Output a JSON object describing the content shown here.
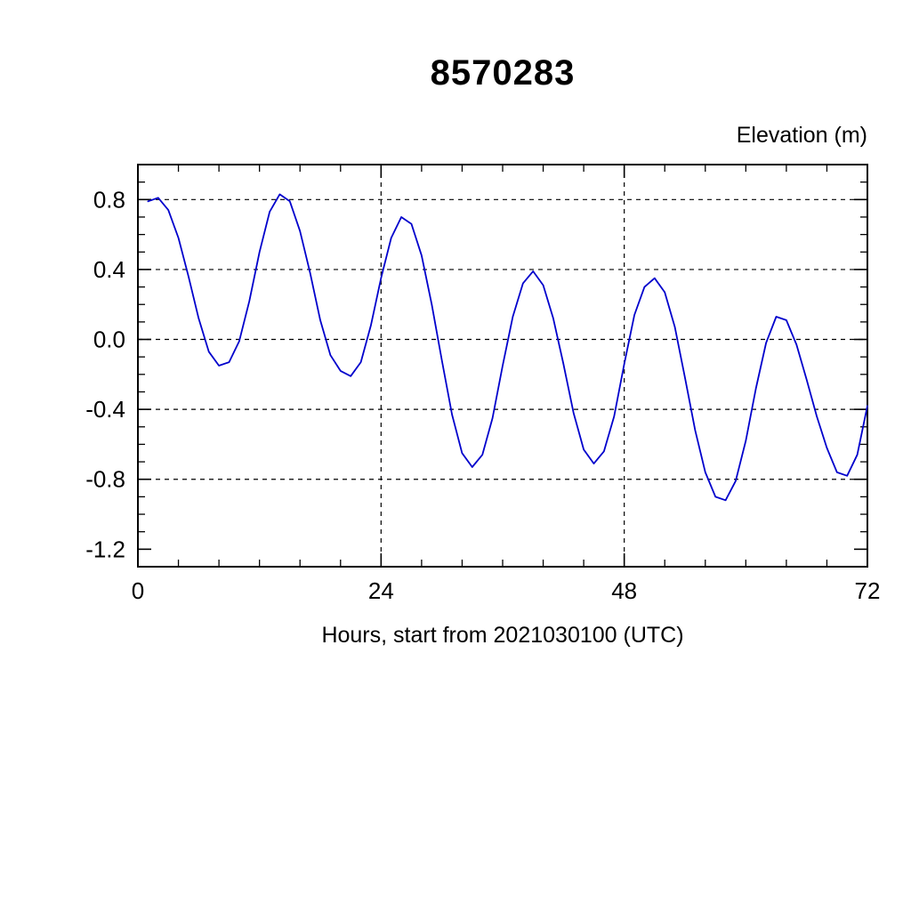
{
  "title": "8570283",
  "ylabel_right": "Elevation (m)",
  "xlabel": "Hours, start from 2021030100 (UTC)",
  "colors": {
    "line": "#0000cc",
    "axis": "#000000",
    "grid": "#000000"
  },
  "chart_data": {
    "type": "line",
    "title": "8570283",
    "xlabel": "Hours, start from 2021030100 (UTC)",
    "ylabel": "Elevation (m)",
    "xlim": [
      0,
      72
    ],
    "ylim": [
      -1.3,
      1.0
    ],
    "xticks": [
      0,
      24,
      48,
      72
    ],
    "yticks": [
      0.8,
      0.4,
      0.0,
      -0.4,
      -0.8,
      -1.2
    ],
    "xgrid": [
      24,
      48
    ],
    "ygrid": [
      0.8,
      0.4,
      0.0,
      -0.4,
      -0.8
    ],
    "x_minor_step": 4,
    "y_minor_step": 0.1,
    "grid_style": "dashed",
    "legend": "none",
    "series": [
      {
        "name": "elevation",
        "color": "#0000cc",
        "x": [
          1,
          2,
          3,
          4,
          5,
          6,
          7,
          8,
          9,
          10,
          11,
          12,
          13,
          14,
          15,
          16,
          17,
          18,
          19,
          20,
          21,
          22,
          23,
          24,
          25,
          26,
          27,
          28,
          29,
          30,
          31,
          32,
          33,
          34,
          35,
          36,
          37,
          38,
          39,
          40,
          41,
          42,
          43,
          44,
          45,
          46,
          47,
          48,
          49,
          50,
          51,
          52,
          53,
          54,
          55,
          56,
          57,
          58,
          59,
          60,
          61,
          62,
          63,
          64,
          65,
          66,
          67,
          68,
          69,
          70,
          71,
          72
        ],
        "y": [
          0.79,
          0.81,
          0.74,
          0.58,
          0.36,
          0.12,
          -0.07,
          -0.15,
          -0.13,
          -0.01,
          0.22,
          0.5,
          0.73,
          0.83,
          0.79,
          0.62,
          0.38,
          0.11,
          -0.09,
          -0.18,
          -0.21,
          -0.13,
          0.08,
          0.35,
          0.58,
          0.7,
          0.66,
          0.48,
          0.2,
          -0.12,
          -0.43,
          -0.65,
          -0.73,
          -0.66,
          -0.45,
          -0.15,
          0.13,
          0.32,
          0.39,
          0.31,
          0.12,
          -0.14,
          -0.42,
          -0.63,
          -0.71,
          -0.64,
          -0.44,
          -0.14,
          0.14,
          0.3,
          0.35,
          0.27,
          0.07,
          -0.22,
          -0.52,
          -0.76,
          -0.9,
          -0.92,
          -0.81,
          -0.58,
          -0.28,
          -0.02,
          0.13,
          0.11,
          -0.03,
          -0.23,
          -0.44,
          -0.62,
          -0.76,
          -0.78,
          -0.66,
          -0.38
        ]
      }
    ]
  }
}
